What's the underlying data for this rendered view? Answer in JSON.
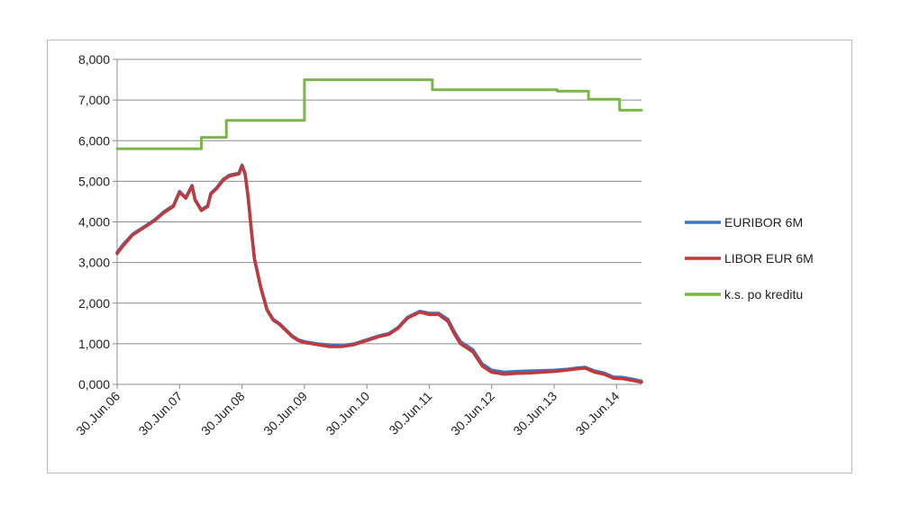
{
  "chart_data": {
    "type": "line",
    "title": "",
    "xlabel": "",
    "ylabel": "",
    "ylim": [
      0,
      8
    ],
    "yticks": [
      "0,000",
      "1,000",
      "2,000",
      "3,000",
      "4,000",
      "5,000",
      "6,000",
      "7,000",
      "8,000"
    ],
    "xlim": [
      2006.5,
      2014.9
    ],
    "xticks": [
      {
        "label": "30.Jun.06",
        "x": 2006.5
      },
      {
        "label": "30.Jun.07",
        "x": 2007.5
      },
      {
        "label": "30.Jun.08",
        "x": 2008.5
      },
      {
        "label": "30.Jun.09",
        "x": 2009.5
      },
      {
        "label": "30.Jun.10",
        "x": 2010.5
      },
      {
        "label": "30.Jun.11",
        "x": 2011.5
      },
      {
        "label": "30.Jun.12",
        "x": 2012.5
      },
      {
        "label": "30.Jun.13",
        "x": 2013.5
      },
      {
        "label": "30.Jun.14",
        "x": 2014.5
      }
    ],
    "grid": true,
    "legend_position": "right",
    "series": [
      {
        "name": "EURIBOR 6M",
        "color": "#3a75c4",
        "points": [
          [
            2006.5,
            3.25
          ],
          [
            2006.6,
            3.45
          ],
          [
            2006.75,
            3.7
          ],
          [
            2006.9,
            3.85
          ],
          [
            2007.0,
            3.95
          ],
          [
            2007.1,
            4.05
          ],
          [
            2007.25,
            4.25
          ],
          [
            2007.4,
            4.4
          ],
          [
            2007.5,
            4.75
          ],
          [
            2007.6,
            4.6
          ],
          [
            2007.7,
            4.9
          ],
          [
            2007.75,
            4.55
          ],
          [
            2007.85,
            4.3
          ],
          [
            2007.95,
            4.4
          ],
          [
            2008.0,
            4.7
          ],
          [
            2008.1,
            4.85
          ],
          [
            2008.2,
            5.05
          ],
          [
            2008.3,
            5.15
          ],
          [
            2008.45,
            5.2
          ],
          [
            2008.5,
            5.4
          ],
          [
            2008.55,
            5.2
          ],
          [
            2008.6,
            4.6
          ],
          [
            2008.65,
            3.8
          ],
          [
            2008.7,
            3.1
          ],
          [
            2008.8,
            2.4
          ],
          [
            2008.9,
            1.85
          ],
          [
            2009.0,
            1.6
          ],
          [
            2009.1,
            1.5
          ],
          [
            2009.2,
            1.35
          ],
          [
            2009.3,
            1.2
          ],
          [
            2009.4,
            1.1
          ],
          [
            2009.5,
            1.05
          ],
          [
            2009.7,
            1.0
          ],
          [
            2009.9,
            0.97
          ],
          [
            2010.1,
            0.95
          ],
          [
            2010.3,
            1.0
          ],
          [
            2010.5,
            1.1
          ],
          [
            2010.7,
            1.2
          ],
          [
            2010.85,
            1.25
          ],
          [
            2011.0,
            1.4
          ],
          [
            2011.15,
            1.65
          ],
          [
            2011.35,
            1.8
          ],
          [
            2011.5,
            1.75
          ],
          [
            2011.65,
            1.75
          ],
          [
            2011.8,
            1.6
          ],
          [
            2011.9,
            1.3
          ],
          [
            2012.0,
            1.05
          ],
          [
            2012.1,
            0.95
          ],
          [
            2012.2,
            0.85
          ],
          [
            2012.35,
            0.5
          ],
          [
            2012.5,
            0.35
          ],
          [
            2012.7,
            0.3
          ],
          [
            2012.9,
            0.32
          ],
          [
            2013.1,
            0.33
          ],
          [
            2013.3,
            0.34
          ],
          [
            2013.5,
            0.35
          ],
          [
            2013.7,
            0.37
          ],
          [
            2013.85,
            0.4
          ],
          [
            2014.0,
            0.42
          ],
          [
            2014.15,
            0.33
          ],
          [
            2014.3,
            0.28
          ],
          [
            2014.45,
            0.18
          ],
          [
            2014.6,
            0.17
          ],
          [
            2014.75,
            0.13
          ],
          [
            2014.9,
            0.08
          ]
        ]
      },
      {
        "name": "LIBOR EUR 6M",
        "color": "#c0393b",
        "points": [
          [
            2006.5,
            3.22
          ],
          [
            2006.6,
            3.42
          ],
          [
            2006.75,
            3.68
          ],
          [
            2006.9,
            3.83
          ],
          [
            2007.0,
            3.93
          ],
          [
            2007.1,
            4.03
          ],
          [
            2007.25,
            4.23
          ],
          [
            2007.4,
            4.38
          ],
          [
            2007.5,
            4.73
          ],
          [
            2007.6,
            4.58
          ],
          [
            2007.7,
            4.88
          ],
          [
            2007.75,
            4.53
          ],
          [
            2007.85,
            4.28
          ],
          [
            2007.95,
            4.38
          ],
          [
            2008.0,
            4.68
          ],
          [
            2008.1,
            4.83
          ],
          [
            2008.2,
            5.03
          ],
          [
            2008.3,
            5.13
          ],
          [
            2008.45,
            5.18
          ],
          [
            2008.5,
            5.38
          ],
          [
            2008.55,
            5.18
          ],
          [
            2008.6,
            4.58
          ],
          [
            2008.65,
            3.78
          ],
          [
            2008.7,
            3.08
          ],
          [
            2008.8,
            2.38
          ],
          [
            2008.9,
            1.83
          ],
          [
            2009.0,
            1.58
          ],
          [
            2009.1,
            1.48
          ],
          [
            2009.2,
            1.33
          ],
          [
            2009.3,
            1.18
          ],
          [
            2009.4,
            1.08
          ],
          [
            2009.5,
            1.03
          ],
          [
            2009.7,
            0.98
          ],
          [
            2009.9,
            0.93
          ],
          [
            2010.1,
            0.93
          ],
          [
            2010.3,
            0.98
          ],
          [
            2010.5,
            1.08
          ],
          [
            2010.7,
            1.18
          ],
          [
            2010.85,
            1.23
          ],
          [
            2011.0,
            1.38
          ],
          [
            2011.15,
            1.63
          ],
          [
            2011.35,
            1.78
          ],
          [
            2011.5,
            1.72
          ],
          [
            2011.65,
            1.72
          ],
          [
            2011.8,
            1.55
          ],
          [
            2011.9,
            1.25
          ],
          [
            2012.0,
            1.0
          ],
          [
            2012.1,
            0.9
          ],
          [
            2012.2,
            0.8
          ],
          [
            2012.35,
            0.45
          ],
          [
            2012.5,
            0.3
          ],
          [
            2012.7,
            0.25
          ],
          [
            2012.9,
            0.27
          ],
          [
            2013.1,
            0.28
          ],
          [
            2013.3,
            0.3
          ],
          [
            2013.5,
            0.32
          ],
          [
            2013.7,
            0.35
          ],
          [
            2013.85,
            0.38
          ],
          [
            2014.0,
            0.4
          ],
          [
            2014.15,
            0.3
          ],
          [
            2014.3,
            0.25
          ],
          [
            2014.45,
            0.15
          ],
          [
            2014.6,
            0.14
          ],
          [
            2014.75,
            0.1
          ],
          [
            2014.9,
            0.05
          ]
        ]
      },
      {
        "name": "k.s. po kreditu",
        "color": "#7ab648",
        "step": true,
        "points": [
          [
            2006.5,
            5.8
          ],
          [
            2007.85,
            5.8
          ],
          [
            2007.85,
            6.08
          ],
          [
            2008.25,
            6.08
          ],
          [
            2008.25,
            6.5
          ],
          [
            2009.5,
            6.5
          ],
          [
            2009.5,
            7.5
          ],
          [
            2011.55,
            7.5
          ],
          [
            2011.55,
            7.25
          ],
          [
            2013.55,
            7.25
          ],
          [
            2013.55,
            7.22
          ],
          [
            2014.05,
            7.22
          ],
          [
            2014.05,
            7.02
          ],
          [
            2014.55,
            7.02
          ],
          [
            2014.55,
            6.75
          ],
          [
            2014.9,
            6.75
          ]
        ]
      }
    ]
  }
}
